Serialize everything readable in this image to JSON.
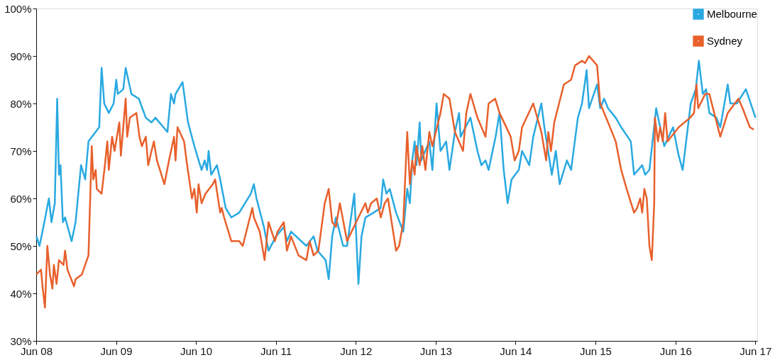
{
  "chart_data": {
    "type": "line",
    "xlim": [
      "2008-06-01",
      "2017-06-10"
    ],
    "ylim": [
      30,
      100
    ],
    "xticks": [
      {
        "value": "2008-06-01",
        "label": "Jun 08"
      },
      {
        "value": "2009-06-01",
        "label": "Jun 09"
      },
      {
        "value": "2010-06-01",
        "label": "Jun 10"
      },
      {
        "value": "2011-06-01",
        "label": "Jun 11"
      },
      {
        "value": "2012-06-01",
        "label": "Jun 12"
      },
      {
        "value": "2013-06-01",
        "label": "Jun 13"
      },
      {
        "value": "2014-06-01",
        "label": "Jun 14"
      },
      {
        "value": "2015-06-01",
        "label": "Jun 15"
      },
      {
        "value": "2016-06-01",
        "label": "Jun 16"
      },
      {
        "value": "2017-06-01",
        "label": "Jun 17"
      }
    ],
    "yticks": [
      {
        "value": 30,
        "label": "30%"
      },
      {
        "value": 40,
        "label": "40%"
      },
      {
        "value": 50,
        "label": "50%"
      },
      {
        "value": 60,
        "label": "60%"
      },
      {
        "value": 70,
        "label": "70%"
      },
      {
        "value": 80,
        "label": "80%"
      },
      {
        "value": 90,
        "label": "90%"
      },
      {
        "value": 100,
        "label": "100%"
      }
    ],
    "grid": false,
    "legend": "top right",
    "marker": "none",
    "line_style": "solid",
    "series": [
      {
        "name": "Melbourne",
        "color": "#29a9e1",
        "x": [
          "2008-06-02",
          "2008-06-16",
          "2008-07-04",
          "2008-07-29",
          "2008-08-10",
          "2008-08-25",
          "2008-09-05",
          "2008-09-13",
          "2008-09-20",
          "2008-10-01",
          "2008-10-11",
          "2008-11-10",
          "2008-11-28",
          "2008-12-23",
          "2009-01-11",
          "2009-01-26",
          "2009-03-16",
          "2009-03-27",
          "2009-04-08",
          "2009-04-29",
          "2009-05-21",
          "2009-06-02",
          "2009-06-09",
          "2009-07-04",
          "2009-07-15",
          "2009-08-10",
          "2009-09-13",
          "2009-10-15",
          "2009-11-10",
          "2009-11-28",
          "2010-01-22",
          "2010-02-07",
          "2010-02-21",
          "2010-02-28",
          "2010-04-01",
          "2010-04-26",
          "2010-05-25",
          "2010-06-27",
          "2010-07-11",
          "2010-07-22",
          "2010-07-29",
          "2010-08-10",
          "2010-09-05",
          "2010-09-20",
          "2010-10-15",
          "2010-11-10",
          "2010-12-16",
          "2011-02-07",
          "2011-02-21",
          "2011-03-05",
          "2011-04-08",
          "2011-04-29",
          "2011-06-02",
          "2011-07-08",
          "2011-07-22",
          "2011-08-10",
          "2011-10-19",
          "2011-11-21",
          "2011-12-09",
          "2012-01-15",
          "2012-01-29",
          "2012-02-14",
          "2012-03-02",
          "2012-04-04",
          "2012-04-22",
          "2012-05-25",
          "2012-06-13",
          "2012-06-27",
          "2012-07-15",
          "2012-08-21",
          "2012-09-23",
          "2012-10-04",
          "2012-10-19",
          "2012-11-03",
          "2012-12-02",
          "2013-01-04",
          "2013-01-22",
          "2013-02-03",
          "2013-02-14",
          "2013-02-25",
          "2013-03-05",
          "2013-03-20",
          "2013-03-27",
          "2013-05-03",
          "2013-05-17",
          "2013-06-05",
          "2013-06-23",
          "2013-07-19",
          "2013-08-03",
          "2013-08-28",
          "2013-09-16",
          "2013-09-23",
          "2013-11-07",
          "2013-12-09",
          "2013-12-27",
          "2014-01-15",
          "2014-01-29",
          "2014-03-02",
          "2014-03-20",
          "2014-04-08",
          "2014-04-26",
          "2014-05-14",
          "2014-06-16",
          "2014-07-01",
          "2014-08-03",
          "2014-08-21",
          "2014-09-27",
          "2014-10-11",
          "2014-11-14",
          "2014-12-02",
          "2014-12-20",
          "2015-01-22",
          "2015-02-10",
          "2015-03-13",
          "2015-04-01",
          "2015-04-22",
          "2015-05-03",
          "2015-06-09",
          "2015-06-23",
          "2015-07-11",
          "2015-07-29",
          "2015-09-02",
          "2015-09-27",
          "2015-11-10",
          "2015-11-25",
          "2016-01-01",
          "2016-01-15",
          "2016-02-03",
          "2016-03-05",
          "2016-04-11",
          "2016-05-21",
          "2016-06-16",
          "2016-07-04",
          "2016-08-10",
          "2016-09-02",
          "2016-09-16",
          "2016-10-04",
          "2016-10-19",
          "2016-11-03",
          "2016-12-05",
          "2016-12-23",
          "2017-01-26",
          "2017-02-07",
          "2017-03-09",
          "2017-04-19",
          "2017-06-02"
        ],
        "values": [
          52,
          50,
          54,
          60,
          55,
          59,
          81,
          65,
          67,
          55,
          56,
          51,
          55,
          67,
          64,
          72,
          75,
          87.5,
          80,
          78,
          80,
          85,
          82,
          83,
          87.5,
          82,
          81,
          77,
          76,
          77,
          74,
          82,
          80,
          82,
          84.5,
          76,
          71,
          66,
          68,
          66,
          70,
          65,
          67,
          64,
          58,
          56,
          57,
          61,
          63,
          60,
          54,
          49,
          52,
          54,
          51,
          53,
          50,
          52,
          49,
          47,
          43,
          52,
          56,
          50,
          50,
          61,
          42,
          52,
          56,
          57,
          58,
          64,
          61,
          62,
          57,
          53,
          62,
          59,
          68,
          72,
          67,
          76,
          68,
          72,
          66,
          80,
          70,
          72,
          66,
          74,
          78,
          73,
          77,
          70,
          67,
          68,
          66,
          73,
          78,
          66,
          59,
          64,
          66,
          70,
          67,
          73,
          80,
          75,
          65,
          70,
          63,
          68,
          66,
          77,
          80,
          87,
          79,
          84,
          79,
          81,
          79,
          77,
          75,
          72,
          65,
          67,
          65,
          66,
          79,
          71,
          75,
          69,
          66,
          80,
          83,
          89,
          82,
          83,
          78,
          77,
          75,
          84,
          80,
          80,
          83,
          77
        ]
      },
      {
        "name": "Sydney",
        "color": "#e8602c",
        "x": [
          "2008-06-02",
          "2008-06-23",
          "2008-07-01",
          "2008-07-11",
          "2008-07-22",
          "2008-08-03",
          "2008-08-14",
          "2008-08-21",
          "2008-09-02",
          "2008-09-13",
          "2008-10-04",
          "2008-10-11",
          "2008-10-22",
          "2008-11-21",
          "2008-11-28",
          "2008-12-27",
          "2009-01-26",
          "2009-02-10",
          "2009-02-17",
          "2009-02-28",
          "2009-03-05",
          "2009-03-27",
          "2009-04-11",
          "2009-04-22",
          "2009-04-29",
          "2009-05-14",
          "2009-05-25",
          "2009-06-16",
          "2009-06-23",
          "2009-07-15",
          "2009-07-22",
          "2009-08-03",
          "2009-09-02",
          "2009-09-16",
          "2009-09-27",
          "2009-10-15",
          "2009-10-26",
          "2009-11-10",
          "2009-11-21",
          "2009-12-05",
          "2010-01-08",
          "2010-01-29",
          "2010-02-21",
          "2010-02-28",
          "2010-03-09",
          "2010-04-08",
          "2010-04-19",
          "2010-05-14",
          "2010-05-25",
          "2010-06-05",
          "2010-06-13",
          "2010-06-27",
          "2010-07-15",
          "2010-08-17",
          "2010-08-28",
          "2010-09-20",
          "2010-09-27",
          "2010-10-08",
          "2010-11-10",
          "2010-12-16",
          "2011-01-01",
          "2011-02-03",
          "2011-02-14",
          "2011-02-21",
          "2011-03-20",
          "2011-04-11",
          "2011-04-29",
          "2011-05-28",
          "2011-06-09",
          "2011-07-08",
          "2011-07-22",
          "2011-08-10",
          "2011-09-13",
          "2011-10-19",
          "2011-11-03",
          "2011-11-21",
          "2011-12-13",
          "2012-01-11",
          "2012-01-29",
          "2012-02-14",
          "2012-03-02",
          "2012-03-20",
          "2012-04-22",
          "2012-06-13",
          "2012-07-15",
          "2012-07-26",
          "2012-08-10",
          "2012-09-05",
          "2012-09-23",
          "2012-10-11",
          "2012-10-26",
          "2012-12-02",
          "2012-12-16",
          "2013-01-04",
          "2013-01-22",
          "2013-02-03",
          "2013-02-14",
          "2013-02-25",
          "2013-03-05",
          "2013-03-20",
          "2013-04-01",
          "2013-04-15",
          "2013-05-03",
          "2013-05-17",
          "2013-06-23",
          "2013-07-08",
          "2013-08-03",
          "2013-08-28",
          "2013-10-04",
          "2013-10-19",
          "2013-11-07",
          "2013-12-09",
          "2014-01-15",
          "2014-01-29",
          "2014-02-28",
          "2014-03-20",
          "2014-05-10",
          "2014-05-28",
          "2014-06-16",
          "2014-07-01",
          "2014-08-21",
          "2014-09-27",
          "2014-10-19",
          "2014-10-29",
          "2014-11-10",
          "2014-11-25",
          "2015-01-08",
          "2015-02-10",
          "2015-02-28",
          "2015-04-01",
          "2015-04-15",
          "2015-05-03",
          "2015-06-09",
          "2015-06-23",
          "2015-07-29",
          "2015-09-02",
          "2015-09-27",
          "2015-10-22",
          "2015-11-25",
          "2015-12-09",
          "2015-12-23",
          "2016-01-01",
          "2016-01-11",
          "2016-01-22",
          "2016-02-03",
          "2016-02-14",
          "2016-02-25",
          "2016-02-28",
          "2016-03-13",
          "2016-03-23",
          "2016-04-04",
          "2016-04-15",
          "2016-04-26",
          "2016-06-16",
          "2016-08-07",
          "2016-08-25",
          "2016-09-05",
          "2016-09-13",
          "2016-10-15",
          "2016-11-03",
          "2016-12-23",
          "2017-01-26",
          "2017-03-16",
          "2017-04-04",
          "2017-05-07",
          "2017-05-25"
        ],
        "values": [
          44,
          45,
          41,
          37,
          50,
          44,
          41,
          46,
          42,
          47,
          46,
          49,
          45,
          41.5,
          43,
          44,
          48,
          71,
          64,
          66,
          62,
          61,
          67,
          72,
          66,
          73,
          70,
          76,
          69,
          81,
          73,
          77,
          78,
          73,
          71,
          73,
          67,
          70,
          72,
          68,
          63,
          68,
          73,
          68,
          75,
          72,
          68,
          60,
          62,
          57,
          63,
          59,
          61,
          63,
          64,
          57,
          58,
          56,
          51,
          51,
          50,
          56,
          58,
          56,
          53,
          47,
          55,
          51,
          53,
          55,
          49,
          52,
          48,
          47,
          51,
          48,
          49,
          59,
          62,
          55,
          54,
          59,
          51,
          56,
          59,
          57,
          59,
          60,
          56,
          59,
          60,
          49,
          50,
          55,
          74,
          63,
          68,
          65,
          71,
          67,
          71,
          66,
          74,
          71,
          78,
          82,
          81,
          74,
          70,
          78,
          82,
          77,
          73,
          80,
          81,
          78,
          73,
          68,
          70,
          75,
          80,
          74,
          68,
          74,
          70,
          76,
          84,
          85,
          88,
          89,
          88.5,
          90,
          88,
          80,
          76,
          72,
          66,
          62,
          57,
          58,
          60,
          57,
          62,
          60,
          50,
          47,
          59,
          77,
          72,
          75,
          72,
          78,
          72,
          75,
          77,
          78,
          84,
          79,
          82,
          82,
          73,
          78,
          81,
          79,
          75,
          74.5
        ]
      }
    ]
  }
}
